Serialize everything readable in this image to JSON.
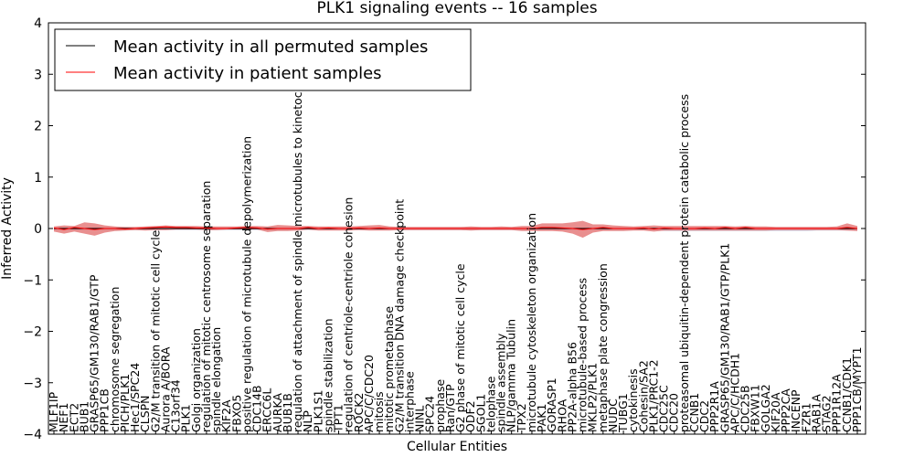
{
  "chart_data": {
    "type": "line",
    "title": "PLK1 signaling events -- 16 samples",
    "xlabel": "Cellular Entities",
    "ylabel": "Inferred Activity",
    "ylim": [
      -4,
      4
    ],
    "yticks": [
      -4,
      -3,
      -2,
      -1,
      0,
      1,
      2,
      3,
      4
    ],
    "legend": {
      "placement": "top-left",
      "entries": [
        {
          "label": "Mean activity in all permuted samples",
          "color": "#000000"
        },
        {
          "label": "Mean activity in patient samples",
          "color": "#ff0000"
        }
      ]
    },
    "categories": [
      "MLF1IP",
      "NEF1",
      "ECT2",
      "BUB1",
      "GRASP65/GM130/RAB1/GTP",
      "PPP1CB",
      "chromosome segregation",
      "PICH/PLK1",
      "Hec1/SPC24",
      "CLSPN",
      "G2/M transition of mitotic cell cycle",
      "Aurora A/BORA",
      "C13orf34",
      "PLK1",
      "Golgi organization",
      "regulation of mitotic centrosome separation",
      "spindle elongation",
      "KIF2A",
      "FBXO5",
      "positive regulation of microtubule depolymerization",
      "CDC14B",
      "ERCC6L",
      "AURKA",
      "BUB1B",
      "regulation of attachment of spindle microtubules to kinetochore",
      "NLP",
      "PLK1S1",
      "spindle stabilization",
      "TPT1",
      "regulation of centriole-centriole cohesion",
      "ROCK2",
      "APC/C/CDC20",
      "mitosis",
      "mitotic prometaphase",
      "G2/M transition DNA damage checkpoint",
      "interphase",
      "NINL",
      "SPC24",
      "prophase",
      "Ran/GTP",
      "G2 phase of mitotic cell cycle",
      "ODF2",
      "SGOL1",
      "telophase",
      "spindle assembly",
      "NLP/gamma Tubulin",
      "TPX2",
      "microtubule cytoskeleton organization",
      "PAK1",
      "GORASP1",
      "RHOA",
      "PP2A-alpha B56",
      "microtubule-based process",
      "MKLP2/PLK1",
      "metaphase plate congression",
      "NUDC",
      "TUBG1",
      "cytokinesis",
      "Cohesin/SA2",
      "PLK1/PRC1-2",
      "CDC25C",
      "CDC20",
      "proteasomal ubiquitin-dependent protein catabolic process",
      "CCNB1",
      "CDC2",
      "PPP2R1A",
      "GRASP65/GM130/RAB1/GTP/PLK1",
      "APC/C/HCDH1",
      "CDC25B",
      "FBXW11",
      "GOLGA2",
      "KIF20A",
      "PPP2CA",
      "INCENP",
      "FZR1",
      "RAB1A",
      "STAG2",
      "PPP1R12A",
      "CCNB1/CDK1",
      "PPP1CB/MYPT1"
    ],
    "series": [
      {
        "name": "Mean activity in all permuted samples",
        "color": "#000000",
        "values": [
          0.0,
          0.0,
          0.0,
          0.0,
          0.0,
          0.0,
          0.0,
          0.0,
          0.0,
          0.0,
          0.0,
          0.0,
          0.0,
          0.0,
          0.0,
          0.0,
          0.0,
          0.0,
          0.0,
          0.0,
          0.0,
          0.0,
          0.0,
          0.0,
          0.0,
          0.0,
          0.0,
          0.0,
          0.0,
          0.0,
          0.0,
          0.0,
          0.0,
          0.0,
          0.0,
          0.0,
          0.0,
          0.0,
          0.0,
          0.0,
          0.0,
          0.0,
          0.0,
          0.0,
          0.0,
          0.0,
          0.0,
          0.0,
          0.0,
          0.0,
          0.0,
          0.0,
          0.0,
          0.0,
          0.0,
          0.0,
          0.0,
          0.0,
          0.0,
          0.0,
          0.0,
          0.0,
          0.0,
          0.0,
          0.0,
          0.0,
          0.0,
          0.0,
          0.0,
          0.0,
          0.0,
          0.0,
          0.0,
          0.0,
          0.0,
          0.0,
          0.0,
          0.0,
          0.0,
          0.0
        ]
      },
      {
        "name": "Mean activity in patient samples",
        "color": "#ff0000",
        "values": [
          0.01,
          -0.02,
          0.02,
          0.0,
          -0.02,
          0.0,
          0.0,
          -0.01,
          0.0,
          0.01,
          0.02,
          0.03,
          0.02,
          0.02,
          0.01,
          0.01,
          0.0,
          0.0,
          0.01,
          0.02,
          0.01,
          -0.01,
          0.0,
          0.0,
          0.0,
          0.02,
          0.0,
          0.01,
          0.0,
          0.0,
          0.01,
          0.0,
          0.01,
          0.0,
          0.0,
          0.0,
          0.0,
          0.0,
          0.0,
          0.0,
          0.0,
          0.0,
          0.0,
          0.0,
          0.0,
          0.0,
          0.0,
          0.0,
          0.02,
          0.02,
          0.01,
          0.0,
          -0.02,
          0.0,
          0.02,
          0.0,
          0.0,
          0.0,
          0.01,
          -0.01,
          0.01,
          0.0,
          0.0,
          0.0,
          0.01,
          0.0,
          0.02,
          0.0,
          0.02,
          0.0,
          0.0,
          0.0,
          0.0,
          0.0,
          0.0,
          0.0,
          0.0,
          0.0,
          0.02,
          0.0
        ],
        "band_upper": [
          0.04,
          0.06,
          0.05,
          0.12,
          0.1,
          0.06,
          0.04,
          0.03,
          0.03,
          0.04,
          0.05,
          0.06,
          0.05,
          0.05,
          0.05,
          0.04,
          0.04,
          0.04,
          0.04,
          0.05,
          0.05,
          0.04,
          0.07,
          0.06,
          0.05,
          0.05,
          0.04,
          0.04,
          0.04,
          0.04,
          0.05,
          0.06,
          0.07,
          0.04,
          0.03,
          0.03,
          0.03,
          0.03,
          0.03,
          0.03,
          0.03,
          0.04,
          0.03,
          0.03,
          0.04,
          0.03,
          0.05,
          0.05,
          0.1,
          0.1,
          0.1,
          0.12,
          0.15,
          0.08,
          0.08,
          0.06,
          0.05,
          0.04,
          0.05,
          0.06,
          0.05,
          0.05,
          0.05,
          0.05,
          0.05,
          0.05,
          0.05,
          0.04,
          0.05,
          0.04,
          0.04,
          0.03,
          0.03,
          0.03,
          0.03,
          0.03,
          0.03,
          0.04,
          0.1,
          0.05
        ],
        "band_lower": [
          -0.06,
          -0.1,
          -0.06,
          -0.1,
          -0.14,
          -0.08,
          -0.05,
          -0.04,
          -0.03,
          -0.04,
          -0.03,
          -0.03,
          -0.02,
          -0.02,
          -0.02,
          -0.03,
          -0.03,
          -0.02,
          -0.02,
          -0.02,
          -0.02,
          -0.07,
          -0.05,
          -0.05,
          -0.04,
          -0.02,
          -0.04,
          -0.04,
          -0.04,
          -0.04,
          -0.03,
          -0.04,
          -0.04,
          -0.04,
          -0.03,
          -0.03,
          -0.03,
          -0.03,
          -0.03,
          -0.03,
          -0.03,
          -0.04,
          -0.03,
          -0.03,
          -0.03,
          -0.03,
          -0.05,
          -0.05,
          -0.05,
          -0.05,
          -0.06,
          -0.1,
          -0.18,
          -0.08,
          -0.05,
          -0.05,
          -0.05,
          -0.04,
          -0.04,
          -0.06,
          -0.04,
          -0.04,
          -0.04,
          -0.04,
          -0.04,
          -0.04,
          -0.04,
          -0.04,
          -0.04,
          -0.04,
          -0.04,
          -0.03,
          -0.03,
          -0.03,
          -0.03,
          -0.03,
          -0.03,
          -0.03,
          -0.04,
          -0.05
        ]
      },
      {
        "name": "permuted band",
        "color": "#aab0cc",
        "band_upper": [
          0.02,
          0.02,
          0.02,
          0.02,
          0.02,
          0.02,
          0.02,
          0.02,
          0.02,
          0.02,
          0.02,
          0.02,
          0.02,
          0.02,
          0.02,
          0.02,
          0.02,
          0.02,
          0.02,
          0.02,
          0.02,
          0.02,
          0.02,
          0.02,
          0.02,
          0.02,
          0.02,
          0.02,
          0.02,
          0.02,
          0.02,
          0.02,
          0.02,
          0.02,
          0.02,
          0.02,
          0.02,
          0.02,
          0.02,
          0.02,
          0.02,
          0.02,
          0.02,
          0.02,
          0.02,
          0.02,
          0.02,
          0.02,
          0.02,
          0.02,
          0.02,
          0.02,
          0.02,
          0.02,
          0.02,
          0.02,
          0.02,
          0.02,
          0.02,
          0.02,
          0.02,
          0.02,
          0.02,
          0.02,
          0.02,
          0.02,
          0.02,
          0.02,
          0.02,
          0.02,
          0.02,
          0.02,
          0.02,
          0.02,
          0.02,
          0.02,
          0.02,
          0.02,
          0.02,
          0.02
        ],
        "band_lower": [
          -0.03,
          -0.03,
          -0.03,
          -0.03,
          -0.03,
          -0.03,
          -0.03,
          -0.03,
          -0.03,
          -0.03,
          -0.03,
          -0.03,
          -0.03,
          -0.03,
          -0.03,
          -0.03,
          -0.03,
          -0.03,
          -0.03,
          -0.03,
          -0.03,
          -0.03,
          -0.03,
          -0.03,
          -0.03,
          -0.03,
          -0.03,
          -0.03,
          -0.03,
          -0.03,
          -0.03,
          -0.03,
          -0.03,
          -0.03,
          -0.03,
          -0.03,
          -0.03,
          -0.03,
          -0.03,
          -0.03,
          -0.03,
          -0.03,
          -0.03,
          -0.03,
          -0.03,
          -0.03,
          -0.03,
          -0.03,
          -0.03,
          -0.03,
          -0.03,
          -0.03,
          -0.03,
          -0.03,
          -0.03,
          -0.03,
          -0.03,
          -0.03,
          -0.03,
          -0.03,
          -0.05,
          -0.05,
          -0.05,
          -0.05,
          -0.05,
          -0.05,
          -0.05,
          -0.05,
          -0.05,
          -0.05,
          -0.05,
          -0.05,
          -0.05,
          -0.05,
          -0.05,
          -0.04,
          -0.04,
          -0.04,
          -0.04,
          -0.04
        ]
      }
    ]
  }
}
